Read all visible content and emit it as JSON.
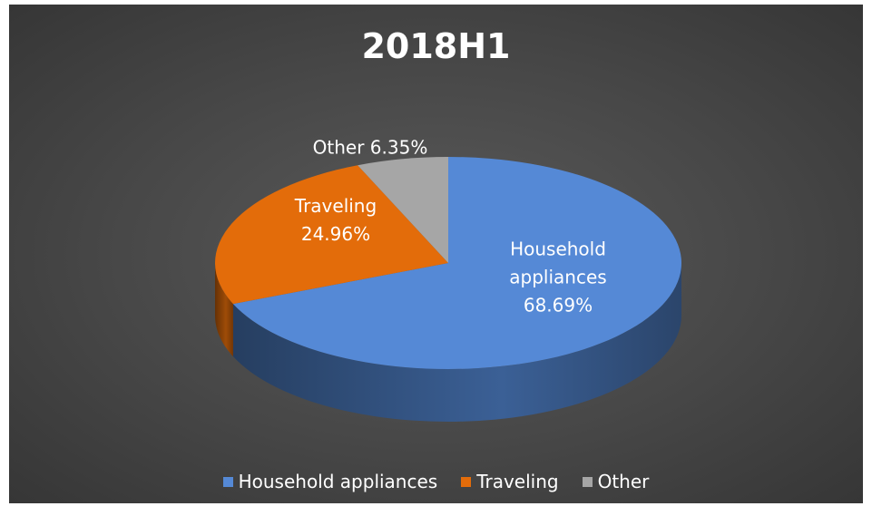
{
  "chart_data": {
    "type": "pie",
    "title": "2018H1",
    "categories": [
      "Household appliances",
      "Traveling",
      "Other"
    ],
    "values": [
      68.69,
      24.96,
      6.35
    ],
    "value_labels": [
      "68.69%",
      "24.96%",
      "6.35%"
    ],
    "colors": [
      "#5589d6",
      "#e36c0a",
      "#a6a6a6"
    ],
    "legend": "bottom"
  }
}
